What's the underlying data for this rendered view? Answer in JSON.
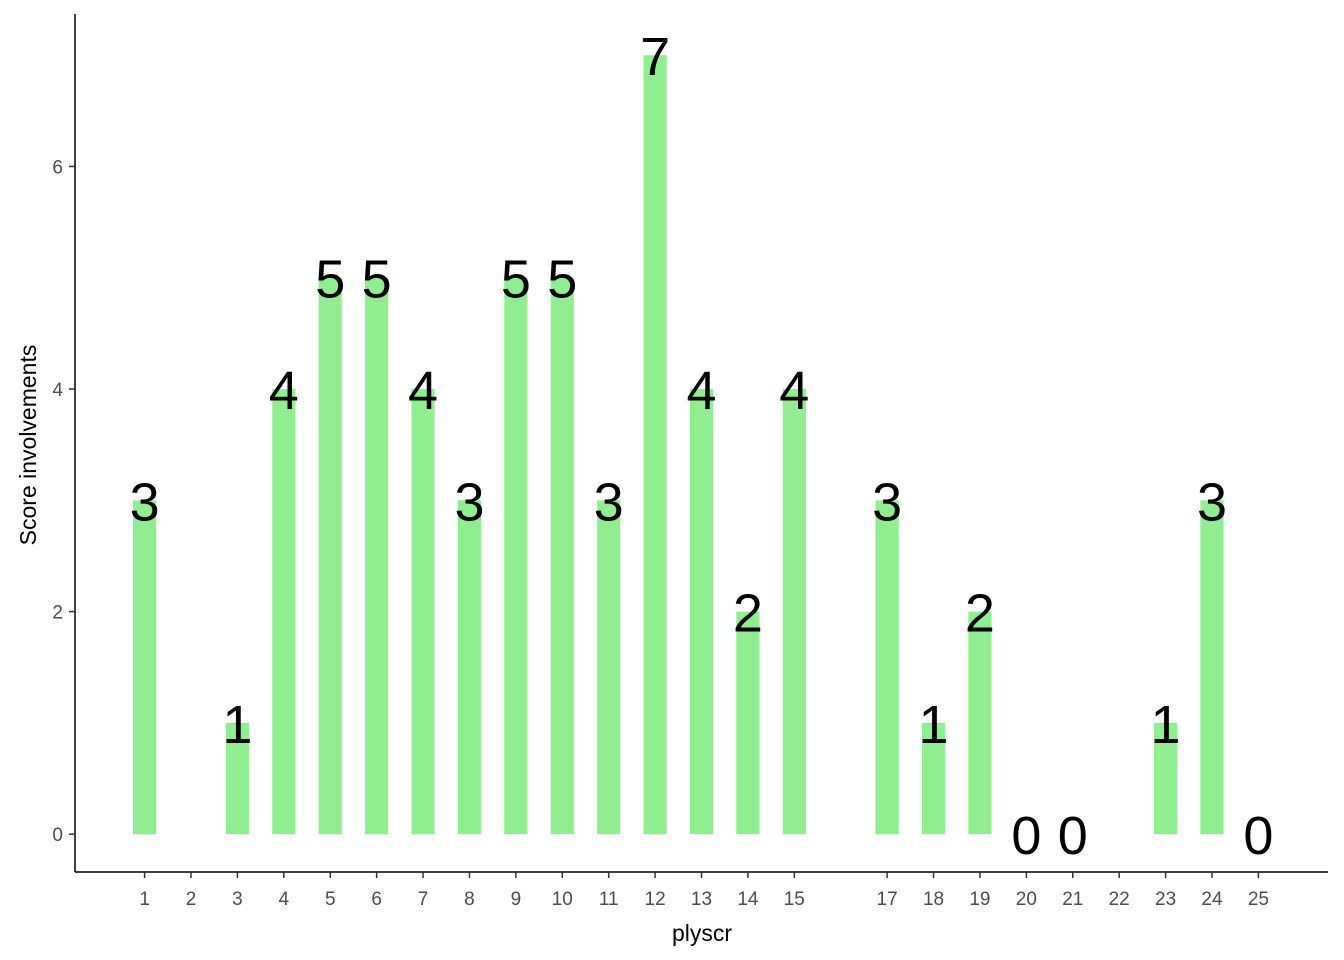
{
  "chart_data": {
    "type": "bar",
    "x_label": "plyscr",
    "y_label": "Score involvements",
    "x": [
      1,
      3,
      4,
      5,
      6,
      7,
      8,
      9,
      10,
      11,
      12,
      13,
      14,
      15,
      17,
      18,
      19,
      20,
      21,
      23,
      24,
      25
    ],
    "values": [
      3,
      1,
      4,
      5,
      5,
      4,
      3,
      5,
      5,
      3,
      7,
      4,
      2,
      4,
      3,
      1,
      2,
      0,
      0,
      1,
      3,
      0
    ],
    "color": "#90ee90",
    "xlim": [
      -0.5,
      26.5
    ],
    "ylim": [
      -0.34,
      7.37
    ],
    "xticks": [
      1,
      2,
      3,
      4,
      5,
      6,
      7,
      8,
      9,
      10,
      11,
      12,
      13,
      14,
      15,
      17,
      18,
      19,
      20,
      21,
      22,
      23,
      24,
      25
    ],
    "yticks": [
      0,
      2,
      4,
      6
    ]
  }
}
